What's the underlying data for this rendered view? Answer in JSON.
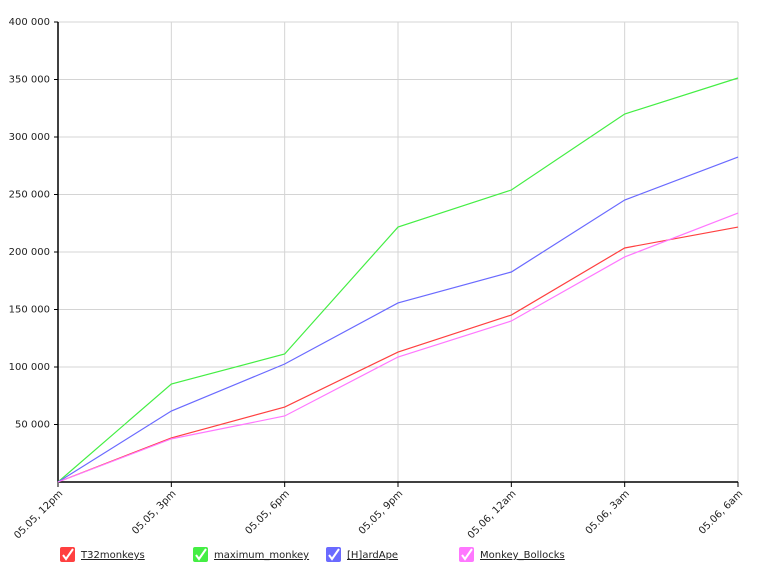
{
  "chart_data": {
    "type": "line",
    "categories": [
      "05.05, 12pm",
      "05.05, 3pm",
      "05.05, 6pm",
      "05.05, 9pm",
      "05.06, 12am",
      "05.06, 3am",
      "05.06, 6am"
    ],
    "series": [
      {
        "name": "T32monkeys",
        "color": "#ff4040",
        "values": [
          0,
          38300,
          65200,
          113000,
          145200,
          203500,
          221700
        ]
      },
      {
        "name": "maximum_monkey",
        "color": "#44ee44",
        "values": [
          0,
          85200,
          111300,
          221700,
          253900,
          320000,
          351300
        ]
      },
      {
        "name": "[H]ardApe",
        "color": "#6a6aff",
        "values": [
          0,
          61700,
          102600,
          155700,
          182600,
          245200,
          282600
        ]
      },
      {
        "name": "Monkey_Bollocks",
        "color": "#ff77ff",
        "values": [
          0,
          37500,
          57400,
          108700,
          140000,
          195700,
          233900
        ]
      }
    ],
    "ylim": [
      0,
      400000
    ],
    "yticks": [
      {
        "value": 50000,
        "label": "50 000"
      },
      {
        "value": 100000,
        "label": "100 000"
      },
      {
        "value": 150000,
        "label": "150 000"
      },
      {
        "value": 200000,
        "label": "200 000"
      },
      {
        "value": 250000,
        "label": "250 000"
      },
      {
        "value": 300000,
        "label": "300 000"
      },
      {
        "value": 350000,
        "label": "350 000"
      },
      {
        "value": 400000,
        "label": "400 000"
      }
    ],
    "grid": true,
    "legend": "bottom"
  }
}
